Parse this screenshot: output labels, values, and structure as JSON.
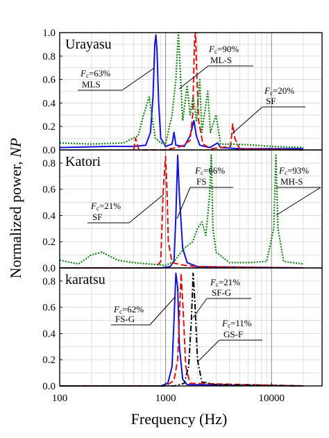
{
  "chart_data": {
    "type": "line",
    "xlabel": "Frequency (Hz)",
    "ylabel_text": "Normalized power, ",
    "ylabel_italic": "NP",
    "x_scale": "log",
    "xlim": [
      100,
      30000
    ],
    "x_ticks": [
      100,
      1000,
      10000
    ],
    "x_tick_labels": [
      "100",
      "1000",
      "10000"
    ],
    "y_tick_labels_top": [
      "0.0",
      "0.2",
      "0.4",
      "0.6",
      "0.8",
      "1.0"
    ],
    "y_tick_labels": [
      "0.0",
      "0.2",
      "0.4",
      "0.6",
      "0.8"
    ],
    "grid": true,
    "colors": {
      "blue": "#1010e0",
      "red": "#e01010",
      "green": "#108010",
      "black": "#000000",
      "grid": "#cccccc",
      "ref": "#888888"
    },
    "panels": [
      {
        "site": "Urayasu",
        "ylim": [
          0,
          1.0
        ],
        "ref_lines": [
          1000,
          10000
        ],
        "annotations": [
          {
            "fc": "=63%",
            "label": "MLS"
          },
          {
            "fc": "=90%",
            "label": "ML-S"
          },
          {
            "fc": "=20%",
            "label": "SF"
          }
        ],
        "series": [
          {
            "color": "blue",
            "style": "solid",
            "points": [
              [
                100,
                0.02
              ],
              [
                300,
                0.03
              ],
              [
                500,
                0.03
              ],
              [
                650,
                0.04
              ],
              [
                720,
                0.15
              ],
              [
                760,
                0.45
              ],
              [
                790,
                0.9
              ],
              [
                810,
                0.98
              ],
              [
                830,
                0.85
              ],
              [
                860,
                0.4
              ],
              [
                900,
                0.1
              ],
              [
                1000,
                0.03
              ],
              [
                1150,
                0.05
              ],
              [
                1200,
                0.15
              ],
              [
                1250,
                0.04
              ],
              [
                1500,
                0.03
              ],
              [
                1700,
                0.12
              ],
              [
                1850,
                0.25
              ],
              [
                1950,
                0.12
              ],
              [
                2100,
                0.04
              ],
              [
                2600,
                0.02
              ],
              [
                3100,
                0.06
              ],
              [
                3300,
                0.02
              ],
              [
                5000,
                0.01
              ],
              [
                20000,
                0.01
              ]
            ]
          },
          {
            "color": "red",
            "style": "dashed",
            "points": [
              [
                500,
                0.0
              ],
              [
                520,
                0.1
              ],
              [
                560,
                0.0
              ],
              [
                700,
                0.0
              ],
              [
                1000,
                0.0
              ],
              [
                1400,
                0.03
              ],
              [
                1700,
                0.08
              ],
              [
                1800,
                0.3
              ],
              [
                1880,
                0.95
              ],
              [
                1920,
                1.0
              ],
              [
                1960,
                0.7
              ],
              [
                2050,
                0.25
              ],
              [
                2250,
                0.05
              ],
              [
                2700,
                0.01
              ],
              [
                4100,
                0.03
              ],
              [
                4300,
                0.22
              ],
              [
                4500,
                0.1
              ],
              [
                5000,
                0.01
              ],
              [
                20000,
                0.0
              ]
            ]
          },
          {
            "color": "green",
            "style": "dotted",
            "points": [
              [
                100,
                0.06
              ],
              [
                200,
                0.05
              ],
              [
                400,
                0.06
              ],
              [
                550,
                0.12
              ],
              [
                620,
                0.3
              ],
              [
                700,
                0.45
              ],
              [
                740,
                0.3
              ],
              [
                800,
                0.1
              ],
              [
                900,
                0.06
              ],
              [
                1000,
                0.05
              ],
              [
                1150,
                0.3
              ],
              [
                1250,
                0.6
              ],
              [
                1290,
                0.85
              ],
              [
                1320,
                1.0
              ],
              [
                1370,
                0.7
              ],
              [
                1450,
                0.25
              ],
              [
                1600,
                0.55
              ],
              [
                1700,
                0.3
              ],
              [
                1820,
                0.45
              ],
              [
                1950,
                0.25
              ],
              [
                2100,
                0.6
              ],
              [
                2200,
                0.15
              ],
              [
                2500,
                0.5
              ],
              [
                2650,
                0.15
              ],
              [
                3000,
                0.3
              ],
              [
                3300,
                0.05
              ],
              [
                4500,
                0.05
              ],
              [
                7000,
                0.04
              ],
              [
                10000,
                0.03
              ],
              [
                20000,
                0.02
              ]
            ]
          }
        ]
      },
      {
        "site": "Katori",
        "ylim": [
          0,
          0.9
        ],
        "ref_lines": [
          1000,
          10000
        ],
        "annotations": [
          {
            "fc": "=21%",
            "label": "SF"
          },
          {
            "fc": "=66%",
            "label": "FS"
          },
          {
            "fc": "=93%",
            "label": "MH-S"
          }
        ],
        "series": [
          {
            "color": "blue",
            "style": "solid",
            "points": [
              [
                100,
                0.0
              ],
              [
                900,
                0.0
              ],
              [
                1100,
                0.01
              ],
              [
                1200,
                0.05
              ],
              [
                1250,
                0.4
              ],
              [
                1300,
                0.86
              ],
              [
                1350,
                0.55
              ],
              [
                1450,
                0.15
              ],
              [
                1600,
                0.04
              ],
              [
                2000,
                0.01
              ],
              [
                20000,
                0.0
              ]
            ]
          },
          {
            "color": "red",
            "style": "dashed",
            "points": [
              [
                100,
                0.0
              ],
              [
                800,
                0.0
              ],
              [
                900,
                0.05
              ],
              [
                950,
                0.6
              ],
              [
                1000,
                0.85
              ],
              [
                1030,
                0.6
              ],
              [
                1060,
                0.2
              ],
              [
                1150,
                0.04
              ],
              [
                1500,
                0.02
              ],
              [
                2000,
                0.01
              ],
              [
                20000,
                0.0
              ]
            ]
          },
          {
            "color": "green",
            "style": "dotted",
            "points": [
              [
                100,
                0.06
              ],
              [
                150,
                0.03
              ],
              [
                200,
                0.1
              ],
              [
                250,
                0.12
              ],
              [
                350,
                0.06
              ],
              [
                500,
                0.04
              ],
              [
                700,
                0.03
              ],
              [
                1000,
                0.02
              ],
              [
                1200,
                0.05
              ],
              [
                1500,
                0.15
              ],
              [
                1800,
                0.2
              ],
              [
                2000,
                0.3
              ],
              [
                2200,
                0.35
              ],
              [
                2400,
                0.25
              ],
              [
                2600,
                0.55
              ],
              [
                2700,
                0.86
              ],
              [
                2800,
                0.3
              ],
              [
                3000,
                0.12
              ],
              [
                4000,
                0.04
              ],
              [
                6000,
                0.04
              ],
              [
                9000,
                0.05
              ],
              [
                10500,
                0.3
              ],
              [
                11000,
                0.86
              ],
              [
                11500,
                0.3
              ],
              [
                13000,
                0.05
              ],
              [
                20000,
                0.03
              ]
            ]
          }
        ]
      },
      {
        "site": "karatsu",
        "ylim": [
          0,
          0.9
        ],
        "ref_lines": [
          1000,
          10000
        ],
        "annotations": [
          {
            "fc": "=62%",
            "label": "FS-G"
          },
          {
            "fc": "=21%",
            "label": "SF-G"
          },
          {
            "fc": "=11%",
            "label": "GS-F"
          }
        ],
        "series": [
          {
            "color": "blue",
            "style": "solid",
            "points": [
              [
                100,
                0.0
              ],
              [
                900,
                0.0
              ],
              [
                1050,
                0.02
              ],
              [
                1150,
                0.15
              ],
              [
                1200,
                0.5
              ],
              [
                1250,
                0.86
              ],
              [
                1300,
                0.75
              ],
              [
                1350,
                0.3
              ],
              [
                1450,
                0.05
              ],
              [
                1600,
                0.01
              ],
              [
                20000,
                0.0
              ]
            ]
          },
          {
            "color": "red",
            "style": "dashed",
            "points": [
              [
                100,
                0.0
              ],
              [
                1000,
                0.0
              ],
              [
                1200,
                0.04
              ],
              [
                1300,
                0.2
              ],
              [
                1360,
                0.6
              ],
              [
                1400,
                0.86
              ],
              [
                1460,
                0.6
              ],
              [
                1550,
                0.15
              ],
              [
                1700,
                0.02
              ],
              [
                20000,
                0.0
              ]
            ]
          },
          {
            "color": "black",
            "style": "dashdot",
            "points": [
              [
                100,
                0.0
              ],
              [
                1200,
                0.0
              ],
              [
                1500,
                0.02
              ],
              [
                1650,
                0.15
              ],
              [
                1750,
                0.5
              ],
              [
                1820,
                0.86
              ],
              [
                1900,
                0.6
              ],
              [
                2000,
                0.2
              ],
              [
                2200,
                0.03
              ],
              [
                3000,
                0.01
              ],
              [
                20000,
                0.0
              ]
            ]
          }
        ]
      }
    ]
  }
}
